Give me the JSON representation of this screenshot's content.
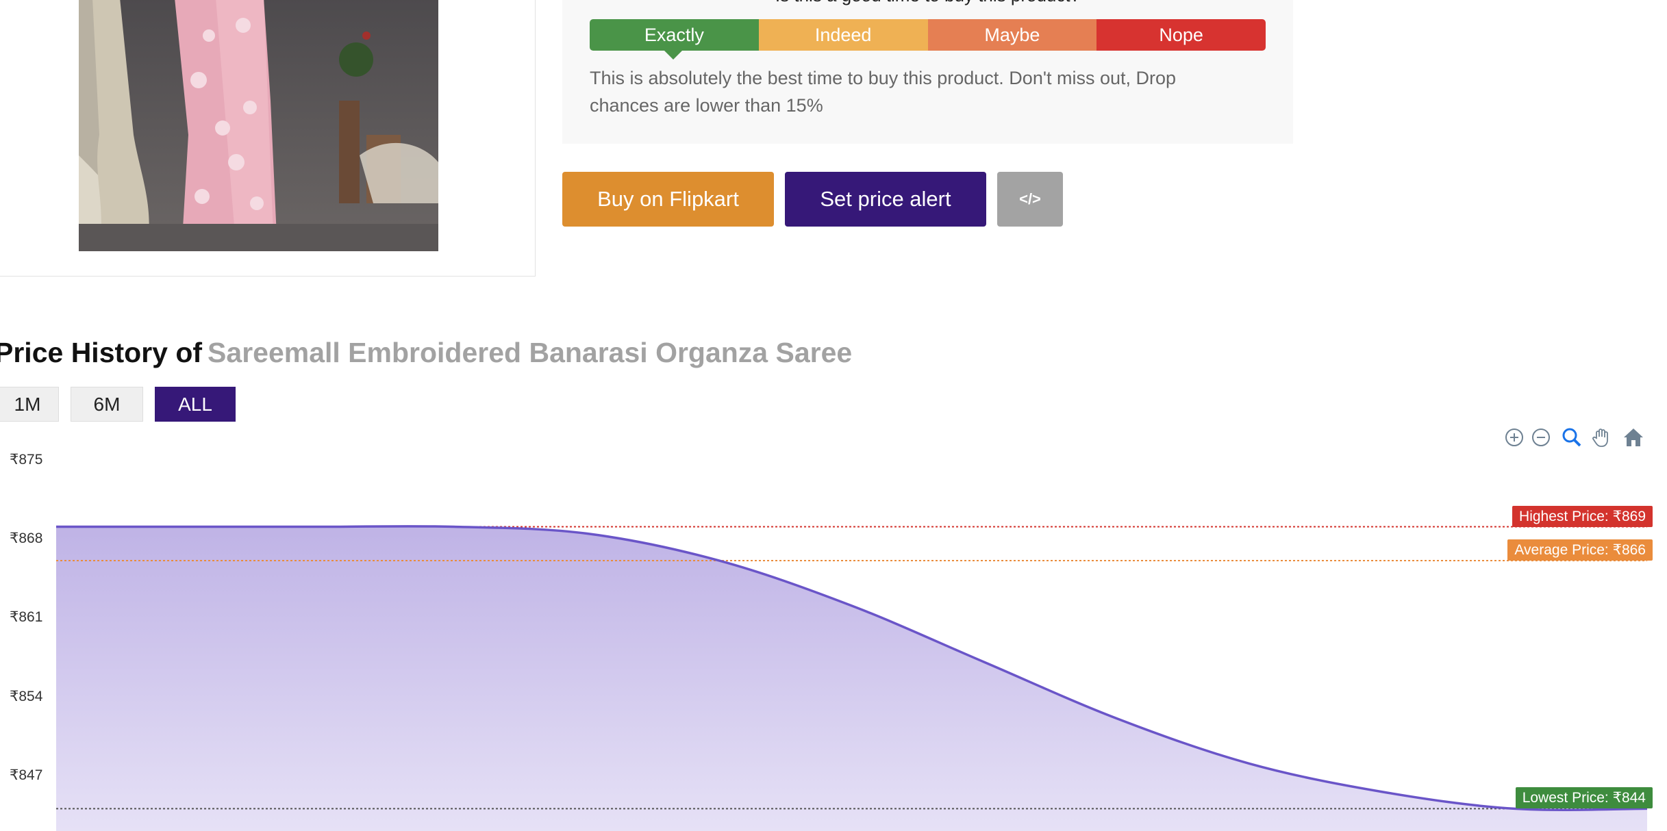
{
  "verdict": {
    "question": "Is this a good time to buy this product?",
    "options": [
      {
        "label": "Exactly",
        "color": "#4a9448"
      },
      {
        "label": "Indeed",
        "color": "#efb154"
      },
      {
        "label": "Maybe",
        "color": "#e57f53"
      },
      {
        "label": "Nope",
        "color": "#d73330"
      }
    ],
    "selected": "Exactly",
    "description": "This is absolutely the best time to buy this product. Don't miss out, Drop chances are lower than 15%"
  },
  "actions": {
    "buy_label": "Buy on Flipkart",
    "alert_label": "Set price alert",
    "embed_label": "</>"
  },
  "price_history": {
    "heading": "Price History of",
    "product_name": "Sareemall Embroidered Banarasi Organza Saree",
    "ranges": [
      "1M",
      "6M",
      "ALL"
    ],
    "selected_range": "ALL",
    "toolbar_icons": [
      "zoom-in-icon",
      "zoom-out-icon",
      "selection-zoom-icon",
      "pan-icon",
      "reset-home-icon"
    ],
    "markers": {
      "highest_label": "Highest Price: ₹869",
      "average_label": "Average Price: ₹866",
      "lowest_label": "Lowest Price: ₹844"
    }
  },
  "chart_data": {
    "type": "area",
    "y_ticks": [
      "₹875",
      "₹868",
      "₹861",
      "₹854",
      "₹847"
    ],
    "ylim": [
      840,
      875
    ],
    "series": [
      {
        "values": [
          869,
          869,
          869,
          869,
          868.4,
          866,
          862,
          857,
          852,
          848,
          845.5,
          844,
          844
        ]
      }
    ],
    "reference_lines": {
      "highest": 869,
      "average": 866,
      "lowest": 844
    },
    "colors": {
      "line": "#6a55c8",
      "fill_top": "#bfb3e6",
      "fill_bottom": "#e6e1f6",
      "high": "#d3332d",
      "avg": "#ea8c3c",
      "low": "#555555"
    },
    "grid": false,
    "legend": "none"
  }
}
